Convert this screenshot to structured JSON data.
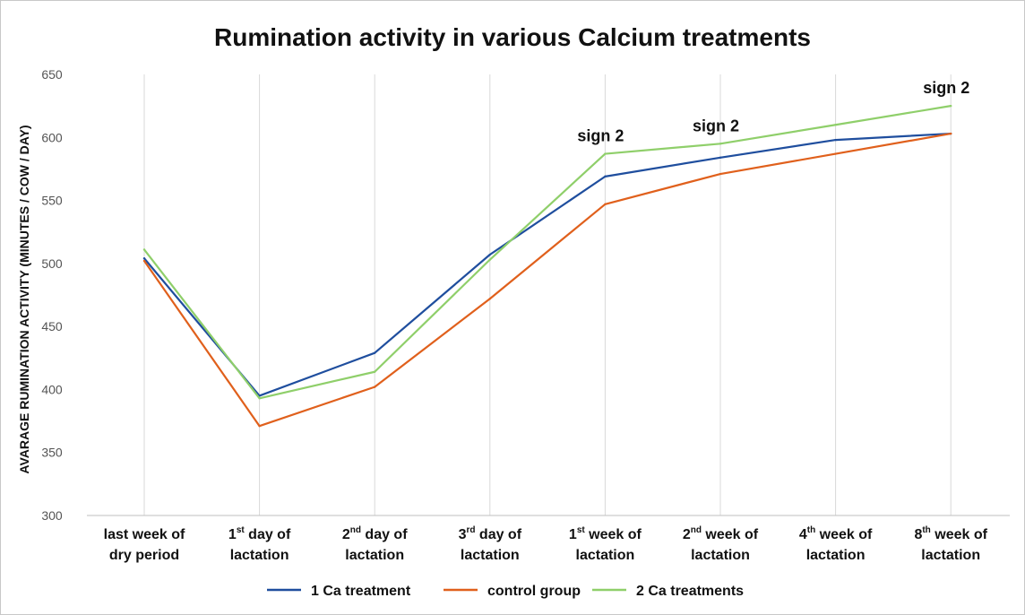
{
  "chart_data": {
    "type": "line",
    "title": "Rumination activity in various Calcium treatments",
    "ylabel": "AVARAGE RUMINATION ACTIVITY (MINUTES / COW / DAY)",
    "xlabel": "",
    "ylim": [
      300,
      650
    ],
    "yticks": [
      300,
      350,
      400,
      450,
      500,
      550,
      600,
      650
    ],
    "grid": "vertical",
    "legend": "bottom",
    "categories": [
      {
        "lines": [
          {
            "main": "last week of"
          },
          {
            "main": "dry period"
          }
        ]
      },
      {
        "lines": [
          {
            "main": "1",
            "sup": "st",
            "rest": " day of"
          },
          {
            "main": "lactation"
          }
        ]
      },
      {
        "lines": [
          {
            "main": "2",
            "sup": "nd",
            "rest": " day of"
          },
          {
            "main": "lactation"
          }
        ]
      },
      {
        "lines": [
          {
            "main": "3",
            "sup": "rd",
            "rest": " day of"
          },
          {
            "main": "lactation"
          }
        ]
      },
      {
        "lines": [
          {
            "main": "1",
            "sup": "st",
            "rest": " week of"
          },
          {
            "main": "lactation"
          }
        ]
      },
      {
        "lines": [
          {
            "main": "2",
            "sup": "nd",
            "rest": " week of"
          },
          {
            "main": "lactation"
          }
        ]
      },
      {
        "lines": [
          {
            "main": "4",
            "sup": "th",
            "rest": " week of"
          },
          {
            "main": "lactation"
          }
        ]
      },
      {
        "lines": [
          {
            "main": "8",
            "sup": "th",
            "rest": " week of"
          },
          {
            "main": "lactation"
          }
        ]
      }
    ],
    "series": [
      {
        "name": "1 Ca treatment",
        "color": "#1f4e9e",
        "values": [
          504,
          395,
          429,
          507,
          569,
          584,
          598,
          603
        ]
      },
      {
        "name": "control group",
        "color": "#e0601c",
        "values": [
          502,
          371,
          402,
          472,
          547,
          571,
          587,
          603
        ]
      },
      {
        "name": "2 Ca treatments",
        "color": "#8fcf6a",
        "values": [
          511,
          393,
          414,
          503,
          587,
          595,
          610,
          625
        ]
      }
    ],
    "annotations": [
      {
        "text": "sign 2",
        "category_index": 4,
        "y": 587
      },
      {
        "text": "sign 2",
        "category_index": 5,
        "y": 595
      },
      {
        "text": "sign 2",
        "category_index": 7,
        "y": 625
      }
    ]
  }
}
